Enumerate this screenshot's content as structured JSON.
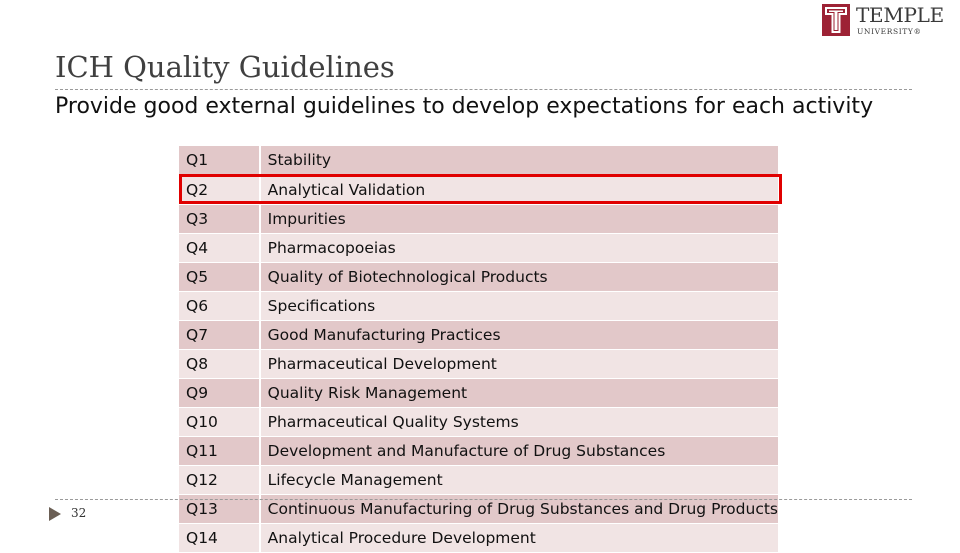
{
  "logo": {
    "name": "TEMPLE",
    "subtitle": "UNIVERSITY®",
    "brand_color": "#9d2235",
    "icon": "temple-t-logo-icon"
  },
  "slide": {
    "title": "ICH Quality Guidelines",
    "subtitle": "Provide good external guidelines to develop expectations for each activity",
    "page_number": "32",
    "highlight_color": "#e00000",
    "highlighted_row": "Q2"
  },
  "guidelines": [
    {
      "code": "Q1",
      "name": "Stability"
    },
    {
      "code": "Q2",
      "name": "Analytical Validation"
    },
    {
      "code": "Q3",
      "name": "Impurities"
    },
    {
      "code": "Q4",
      "name": "Pharmacopoeias"
    },
    {
      "code": "Q5",
      "name": "Quality of Biotechnological Products"
    },
    {
      "code": "Q6",
      "name": "Specifications"
    },
    {
      "code": "Q7",
      "name": "Good Manufacturing Practices"
    },
    {
      "code": "Q8",
      "name": "Pharmaceutical Development"
    },
    {
      "code": "Q9",
      "name": "Quality Risk Management"
    },
    {
      "code": "Q10",
      "name": "Pharmaceutical Quality Systems"
    },
    {
      "code": "Q11",
      "name": "Development and Manufacture of Drug Substances"
    },
    {
      "code": "Q12",
      "name": "Lifecycle Management"
    },
    {
      "code": "Q13",
      "name": "Continuous Manufacturing of Drug Substances and Drug Products"
    },
    {
      "code": "Q14",
      "name": "Analytical Procedure Development"
    }
  ]
}
